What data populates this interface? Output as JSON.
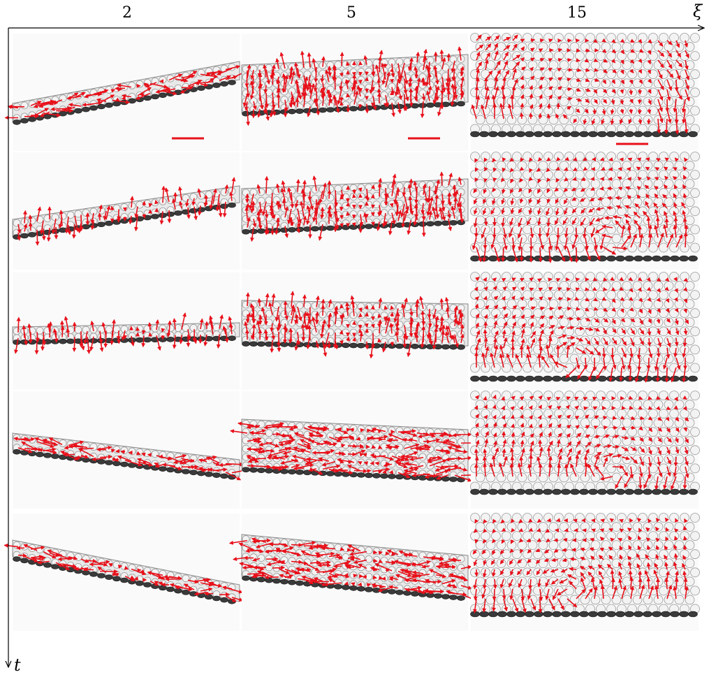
{
  "figure": {
    "columns": [
      {
        "label": "2"
      },
      {
        "label": "5"
      },
      {
        "label": "15"
      }
    ],
    "x_axis_label": "ξ",
    "y_axis_label": "t",
    "rows": 5,
    "colors": {
      "arrow": "#e8101a",
      "scale_bar": "#e8101a",
      "cell_outline": "#9a9a9a",
      "cell_fill": "#f3f3f3",
      "droplet_dark": "#3a3a3a",
      "background": "#fafafa"
    }
  }
}
